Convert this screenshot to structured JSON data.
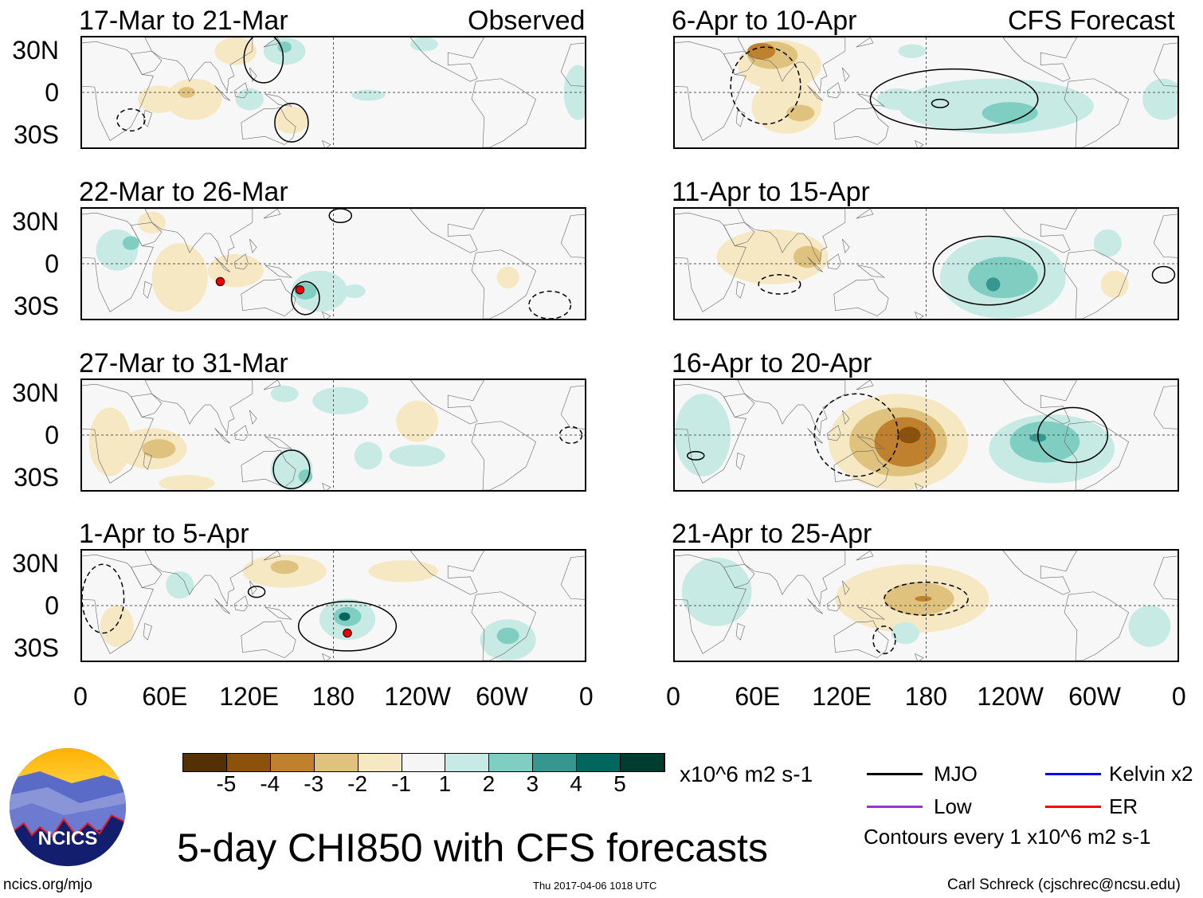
{
  "colors": {
    "levels": [
      "#543005",
      "#8c510a",
      "#bf812d",
      "#dfc27d",
      "#f6e8c3",
      "#f5f5f5",
      "#c7eae5",
      "#80cdc1",
      "#35978f",
      "#01665e",
      "#003c30"
    ],
    "mjo": "#000000",
    "kelvin": "#0000ff",
    "low": "#9933cc",
    "er": "#ff0000"
  },
  "headers": {
    "observed": "Observed",
    "forecast": "CFS Forecast"
  },
  "ylabels": [
    "30N",
    "0",
    "30S"
  ],
  "xlabels": [
    "0",
    "60E",
    "120E",
    "180",
    "120W",
    "60W",
    "0"
  ],
  "panels": [
    {
      "title": "17-Mar to 21-Mar",
      "blobs": [
        [
          55,
          -5,
          15,
          10,
          -1
        ],
        [
          80,
          -5,
          20,
          15,
          -1
        ],
        [
          75,
          0,
          6,
          4,
          -2
        ],
        [
          150,
          -20,
          12,
          10,
          -1
        ],
        [
          110,
          30,
          15,
          10,
          -1
        ],
        [
          145,
          30,
          15,
          10,
          1
        ],
        [
          145,
          33,
          5,
          4,
          2
        ],
        [
          120,
          -5,
          10,
          8,
          1
        ],
        [
          245,
          35,
          10,
          5,
          1
        ],
        [
          355,
          0,
          10,
          20,
          1
        ],
        [
          205,
          -2,
          12,
          4,
          1
        ]
      ],
      "contours": [
        [
          150,
          -22,
          12,
          14,
          0
        ],
        [
          130,
          25,
          14,
          18,
          0
        ],
        [
          35,
          -20,
          10,
          8,
          1
        ]
      ],
      "cyclones": []
    },
    {
      "title": "22-Mar to 26-Mar",
      "blobs": [
        [
          70,
          -10,
          20,
          25,
          -1
        ],
        [
          50,
          30,
          10,
          8,
          -1
        ],
        [
          110,
          -5,
          20,
          12,
          -1
        ],
        [
          170,
          -20,
          20,
          15,
          1
        ],
        [
          160,
          -20,
          8,
          6,
          2
        ],
        [
          25,
          10,
          15,
          15,
          1
        ],
        [
          35,
          15,
          6,
          5,
          2
        ],
        [
          195,
          -20,
          8,
          5,
          1
        ],
        [
          305,
          -10,
          8,
          8,
          -1
        ]
      ],
      "contours": [
        [
          160,
          -25,
          10,
          12,
          0
        ],
        [
          185,
          35,
          8,
          5,
          0
        ],
        [
          335,
          -30,
          15,
          10,
          1
        ]
      ],
      "cyclones": [
        [
          99,
          -13,
          "C"
        ],
        [
          156,
          -19,
          "D"
        ]
      ]
    },
    {
      "title": "27-Mar to 31-Mar",
      "blobs": [
        [
          50,
          -10,
          25,
          15,
          -1
        ],
        [
          55,
          -10,
          12,
          7,
          -2
        ],
        [
          20,
          -5,
          15,
          25,
          -1
        ],
        [
          75,
          -35,
          20,
          6,
          -1
        ],
        [
          240,
          10,
          15,
          15,
          -1
        ],
        [
          145,
          30,
          10,
          6,
          1
        ],
        [
          185,
          25,
          20,
          10,
          1
        ],
        [
          150,
          -25,
          15,
          15,
          1
        ],
        [
          160,
          -30,
          5,
          5,
          2
        ],
        [
          240,
          -15,
          20,
          8,
          1
        ],
        [
          205,
          -15,
          10,
          10,
          1
        ]
      ],
      "contours": [
        [
          150,
          -25,
          13,
          14,
          0
        ],
        [
          350,
          0,
          8,
          6,
          1
        ]
      ],
      "cyclones": []
    },
    {
      "title": "1-Apr to 5-Apr",
      "blobs": [
        [
          145,
          25,
          30,
          12,
          -1
        ],
        [
          145,
          28,
          10,
          5,
          -2
        ],
        [
          25,
          -15,
          12,
          15,
          -1
        ],
        [
          230,
          25,
          25,
          8,
          -1
        ],
        [
          190,
          -10,
          20,
          15,
          1
        ],
        [
          190,
          -8,
          10,
          7,
          2
        ],
        [
          188,
          -8,
          4,
          3,
          4
        ],
        [
          305,
          -25,
          20,
          15,
          1
        ],
        [
          305,
          -22,
          8,
          6,
          2
        ],
        [
          70,
          15,
          10,
          10,
          1
        ]
      ],
      "contours": [
        [
          190,
          -15,
          35,
          18,
          0
        ],
        [
          125,
          10,
          6,
          4,
          0
        ],
        [
          15,
          5,
          15,
          25,
          1
        ]
      ],
      "cyclones": [
        [
          190,
          -20,
          "E"
        ]
      ]
    },
    {
      "title": "6-Apr to 10-Apr",
      "blobs": [
        [
          75,
          20,
          30,
          18,
          -1
        ],
        [
          70,
          27,
          18,
          10,
          -2
        ],
        [
          62,
          30,
          10,
          6,
          -3
        ],
        [
          80,
          -10,
          25,
          20,
          -1
        ],
        [
          90,
          -15,
          10,
          6,
          -2
        ],
        [
          230,
          -10,
          70,
          20,
          1
        ],
        [
          240,
          -15,
          20,
          8,
          2
        ],
        [
          160,
          -5,
          15,
          8,
          1
        ],
        [
          350,
          -5,
          15,
          15,
          1
        ],
        [
          170,
          30,
          10,
          5,
          1
        ]
      ],
      "contours": [
        [
          200,
          -5,
          60,
          22,
          0
        ],
        [
          65,
          5,
          25,
          28,
          1
        ],
        [
          190,
          -8,
          6,
          3,
          0
        ]
      ],
      "cyclones": []
    },
    {
      "title": "11-Apr to 15-Apr",
      "blobs": [
        [
          70,
          5,
          40,
          20,
          -1
        ],
        [
          95,
          5,
          10,
          8,
          -2
        ],
        [
          315,
          -15,
          10,
          10,
          -1
        ],
        [
          235,
          -10,
          45,
          30,
          1
        ],
        [
          235,
          -10,
          25,
          15,
          2
        ],
        [
          228,
          -15,
          5,
          5,
          3
        ],
        [
          310,
          15,
          10,
          10,
          1
        ]
      ],
      "contours": [
        [
          225,
          -5,
          40,
          25,
          0
        ],
        [
          75,
          -15,
          15,
          7,
          1
        ],
        [
          350,
          -8,
          8,
          6,
          0
        ]
      ],
      "cyclones": []
    },
    {
      "title": "16-Apr to 20-Apr",
      "blobs": [
        [
          160,
          -5,
          50,
          35,
          -1
        ],
        [
          160,
          -5,
          35,
          25,
          -2
        ],
        [
          165,
          -5,
          22,
          18,
          -3
        ],
        [
          168,
          0,
          8,
          6,
          -4
        ],
        [
          270,
          -10,
          45,
          25,
          1
        ],
        [
          265,
          -5,
          25,
          15,
          2
        ],
        [
          260,
          -2,
          6,
          3,
          3
        ],
        [
          20,
          0,
          20,
          30,
          1
        ]
      ],
      "contours": [
        [
          285,
          0,
          25,
          20,
          0
        ],
        [
          130,
          0,
          30,
          30,
          1
        ],
        [
          15,
          -15,
          6,
          3,
          0
        ]
      ],
      "cyclones": []
    },
    {
      "title": "21-Apr to 25-Apr",
      "blobs": [
        [
          170,
          5,
          55,
          25,
          -1
        ],
        [
          175,
          5,
          25,
          12,
          -2
        ],
        [
          178,
          5,
          6,
          2,
          -3
        ],
        [
          30,
          10,
          25,
          25,
          1
        ],
        [
          340,
          -15,
          15,
          15,
          1
        ],
        [
          165,
          -20,
          10,
          8,
          1
        ]
      ],
      "contours": [
        [
          180,
          5,
          30,
          12,
          1
        ],
        [
          150,
          -25,
          8,
          10,
          1
        ]
      ],
      "cyclones": []
    }
  ],
  "colorbar": {
    "ticks": [
      "-5",
      "-4",
      "-3",
      "-2",
      "-1",
      "1",
      "2",
      "3",
      "4",
      "5"
    ],
    "units": "x10^6 m2 s-1"
  },
  "legend": {
    "mjo": "MJO",
    "kelvin": "Kelvin x2",
    "low": "Low",
    "er": "ER",
    "contours_note": "Contours every 1 x10^6 m2 s-1"
  },
  "footer": {
    "title": "5-day CHI850 with CFS forecasts",
    "logo_text": "NCICS",
    "url": "ncics.org/mjo",
    "timestamp": "Thu 2017-04-06 1018 UTC",
    "author": "Carl Schreck (cjschrec@ncsu.edu)"
  }
}
